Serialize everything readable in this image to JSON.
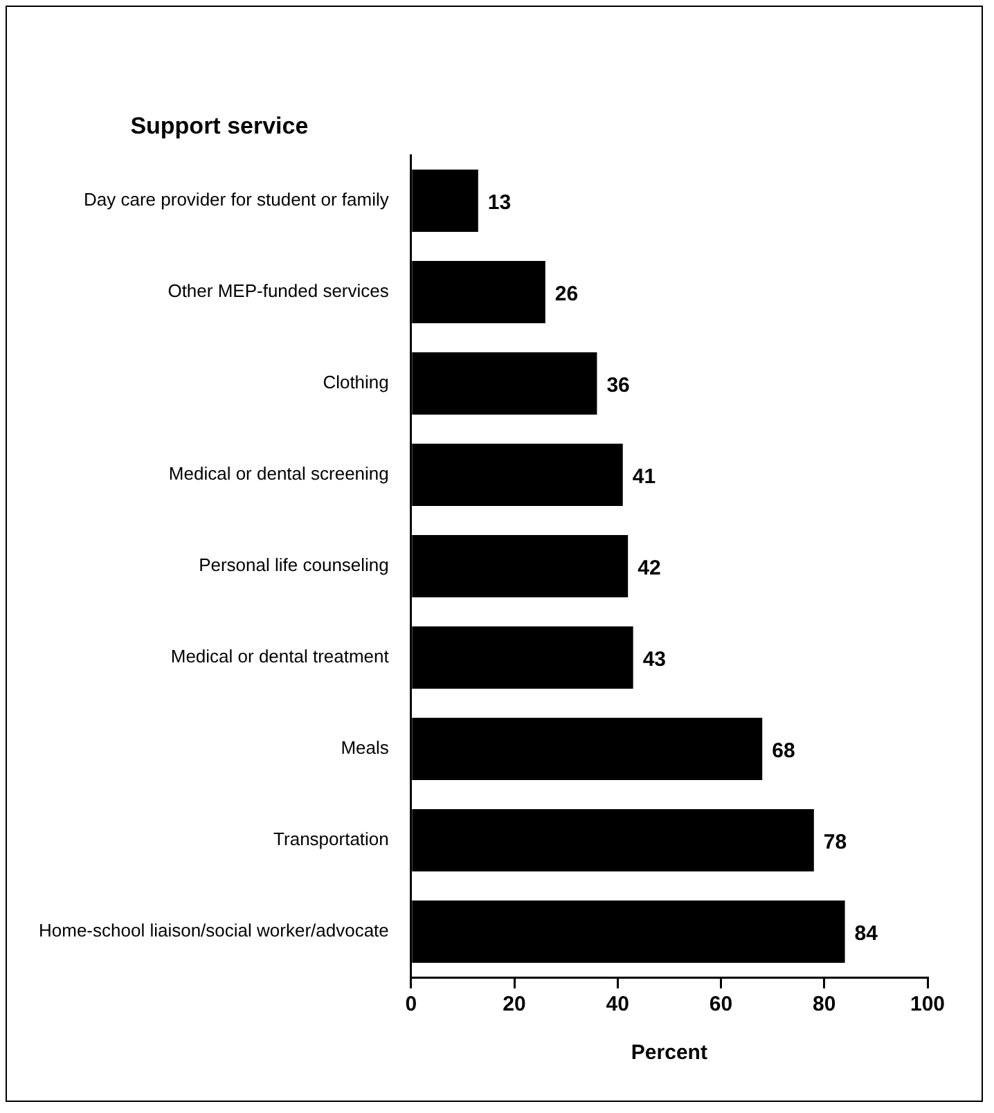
{
  "chart_data": {
    "type": "bar",
    "orientation": "horizontal",
    "title": "Support service",
    "xlabel": "Percent",
    "categories": [
      "Day care provider for student or family",
      "Other MEP-funded services",
      "Clothing",
      "Medical or dental screening",
      "Personal life counseling",
      "Medical or dental treatment",
      "Meals",
      "Transportation",
      "Home-school liaison/social worker/advocate"
    ],
    "values": [
      13,
      26,
      36,
      41,
      42,
      43,
      68,
      78,
      84
    ],
    "color": "#000000",
    "xlim": [
      0,
      100
    ],
    "xticks": [
      0,
      20,
      40,
      60,
      80,
      100
    ],
    "grid": false,
    "legend": false,
    "data_labels": true
  }
}
